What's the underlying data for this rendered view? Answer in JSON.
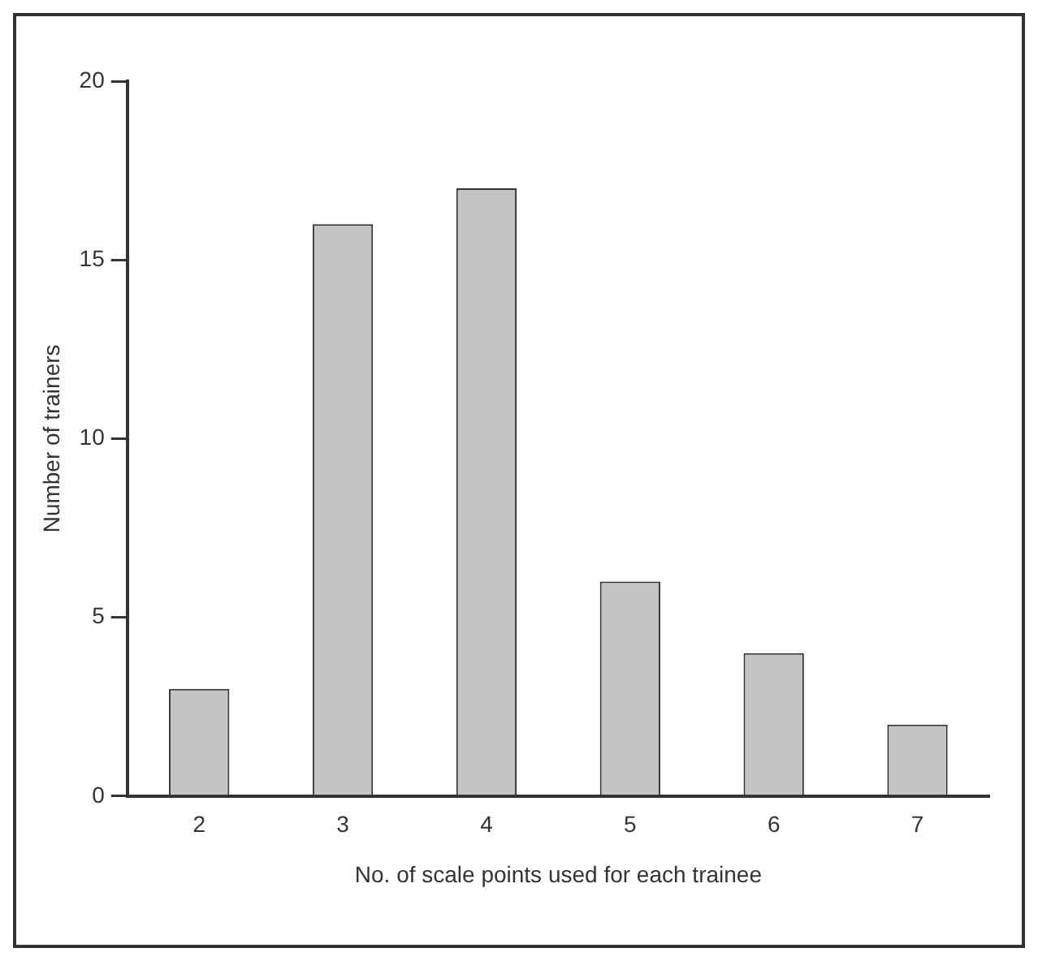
{
  "chart_data": {
    "type": "bar",
    "xlabel": "No. of scale points used for each trainee",
    "ylabel": "Number of trainers",
    "categories": [
      "2",
      "3",
      "4",
      "5",
      "6",
      "7"
    ],
    "values": [
      3,
      16,
      17,
      6,
      4,
      2
    ],
    "color": "#c4c4c4",
    "ylim": [
      0,
      20
    ],
    "yticks": [
      0,
      5,
      10,
      15,
      20
    ],
    "grid": false
  }
}
